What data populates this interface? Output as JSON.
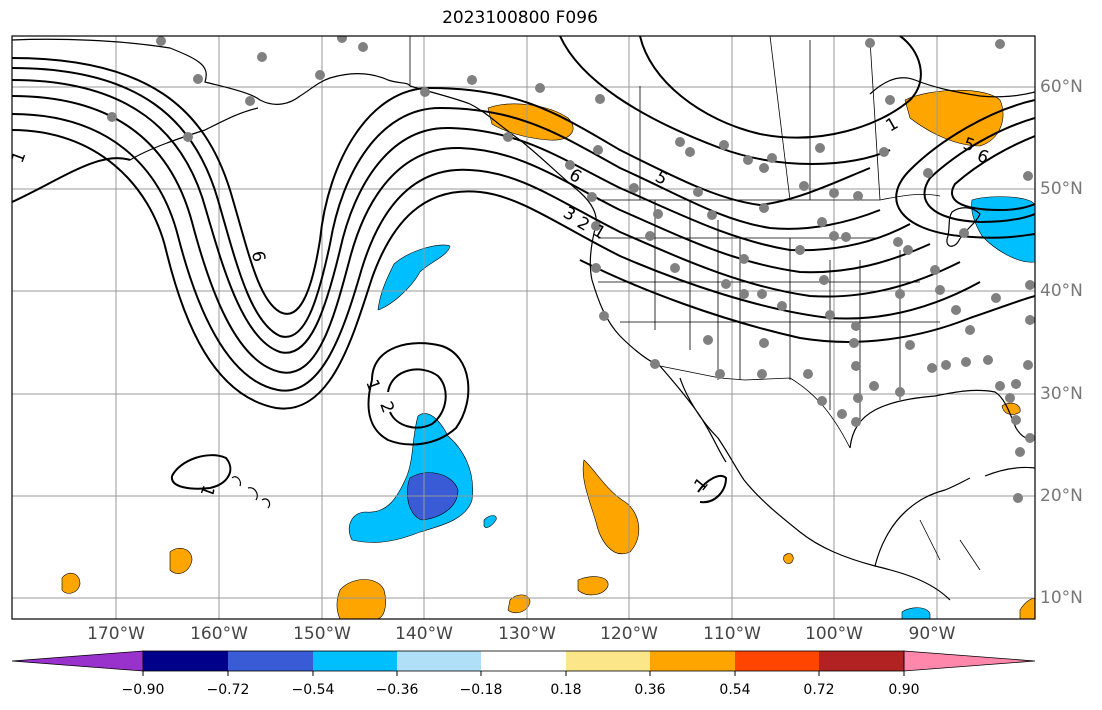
{
  "title": "2023100800 F096",
  "map": {
    "longitude_labels": [
      "170°W",
      "160°W",
      "150°W",
      "140°W",
      "130°W",
      "120°W",
      "110°W",
      "100°W",
      "90°W"
    ],
    "latitude_labels": [
      "60°N",
      "50°N",
      "40°N",
      "30°N",
      "20°N",
      "10°N"
    ],
    "contour_labels": [
      "1",
      "6",
      "1",
      "2",
      "1",
      "1",
      "1",
      "5",
      "6",
      "3",
      "2",
      "1",
      "6",
      "5"
    ],
    "station_marker_color": "#808080",
    "contour_color": "#000000",
    "coastline_color": "#000000",
    "gridline_color": "#999999"
  },
  "colorbar": {
    "tick_labels": [
      "−0.90",
      "−0.72",
      "−0.54",
      "−0.36",
      "−0.18",
      "0.18",
      "0.36",
      "0.54",
      "0.72",
      "0.90"
    ],
    "colors": [
      "#9932cc",
      "#00008b",
      "#3a5bd6",
      "#00bfff",
      "#b0e0f8",
      "#ffffff",
      "#fbe68a",
      "#ffa500",
      "#ff4500",
      "#b22222",
      "#ff87ab"
    ]
  }
}
